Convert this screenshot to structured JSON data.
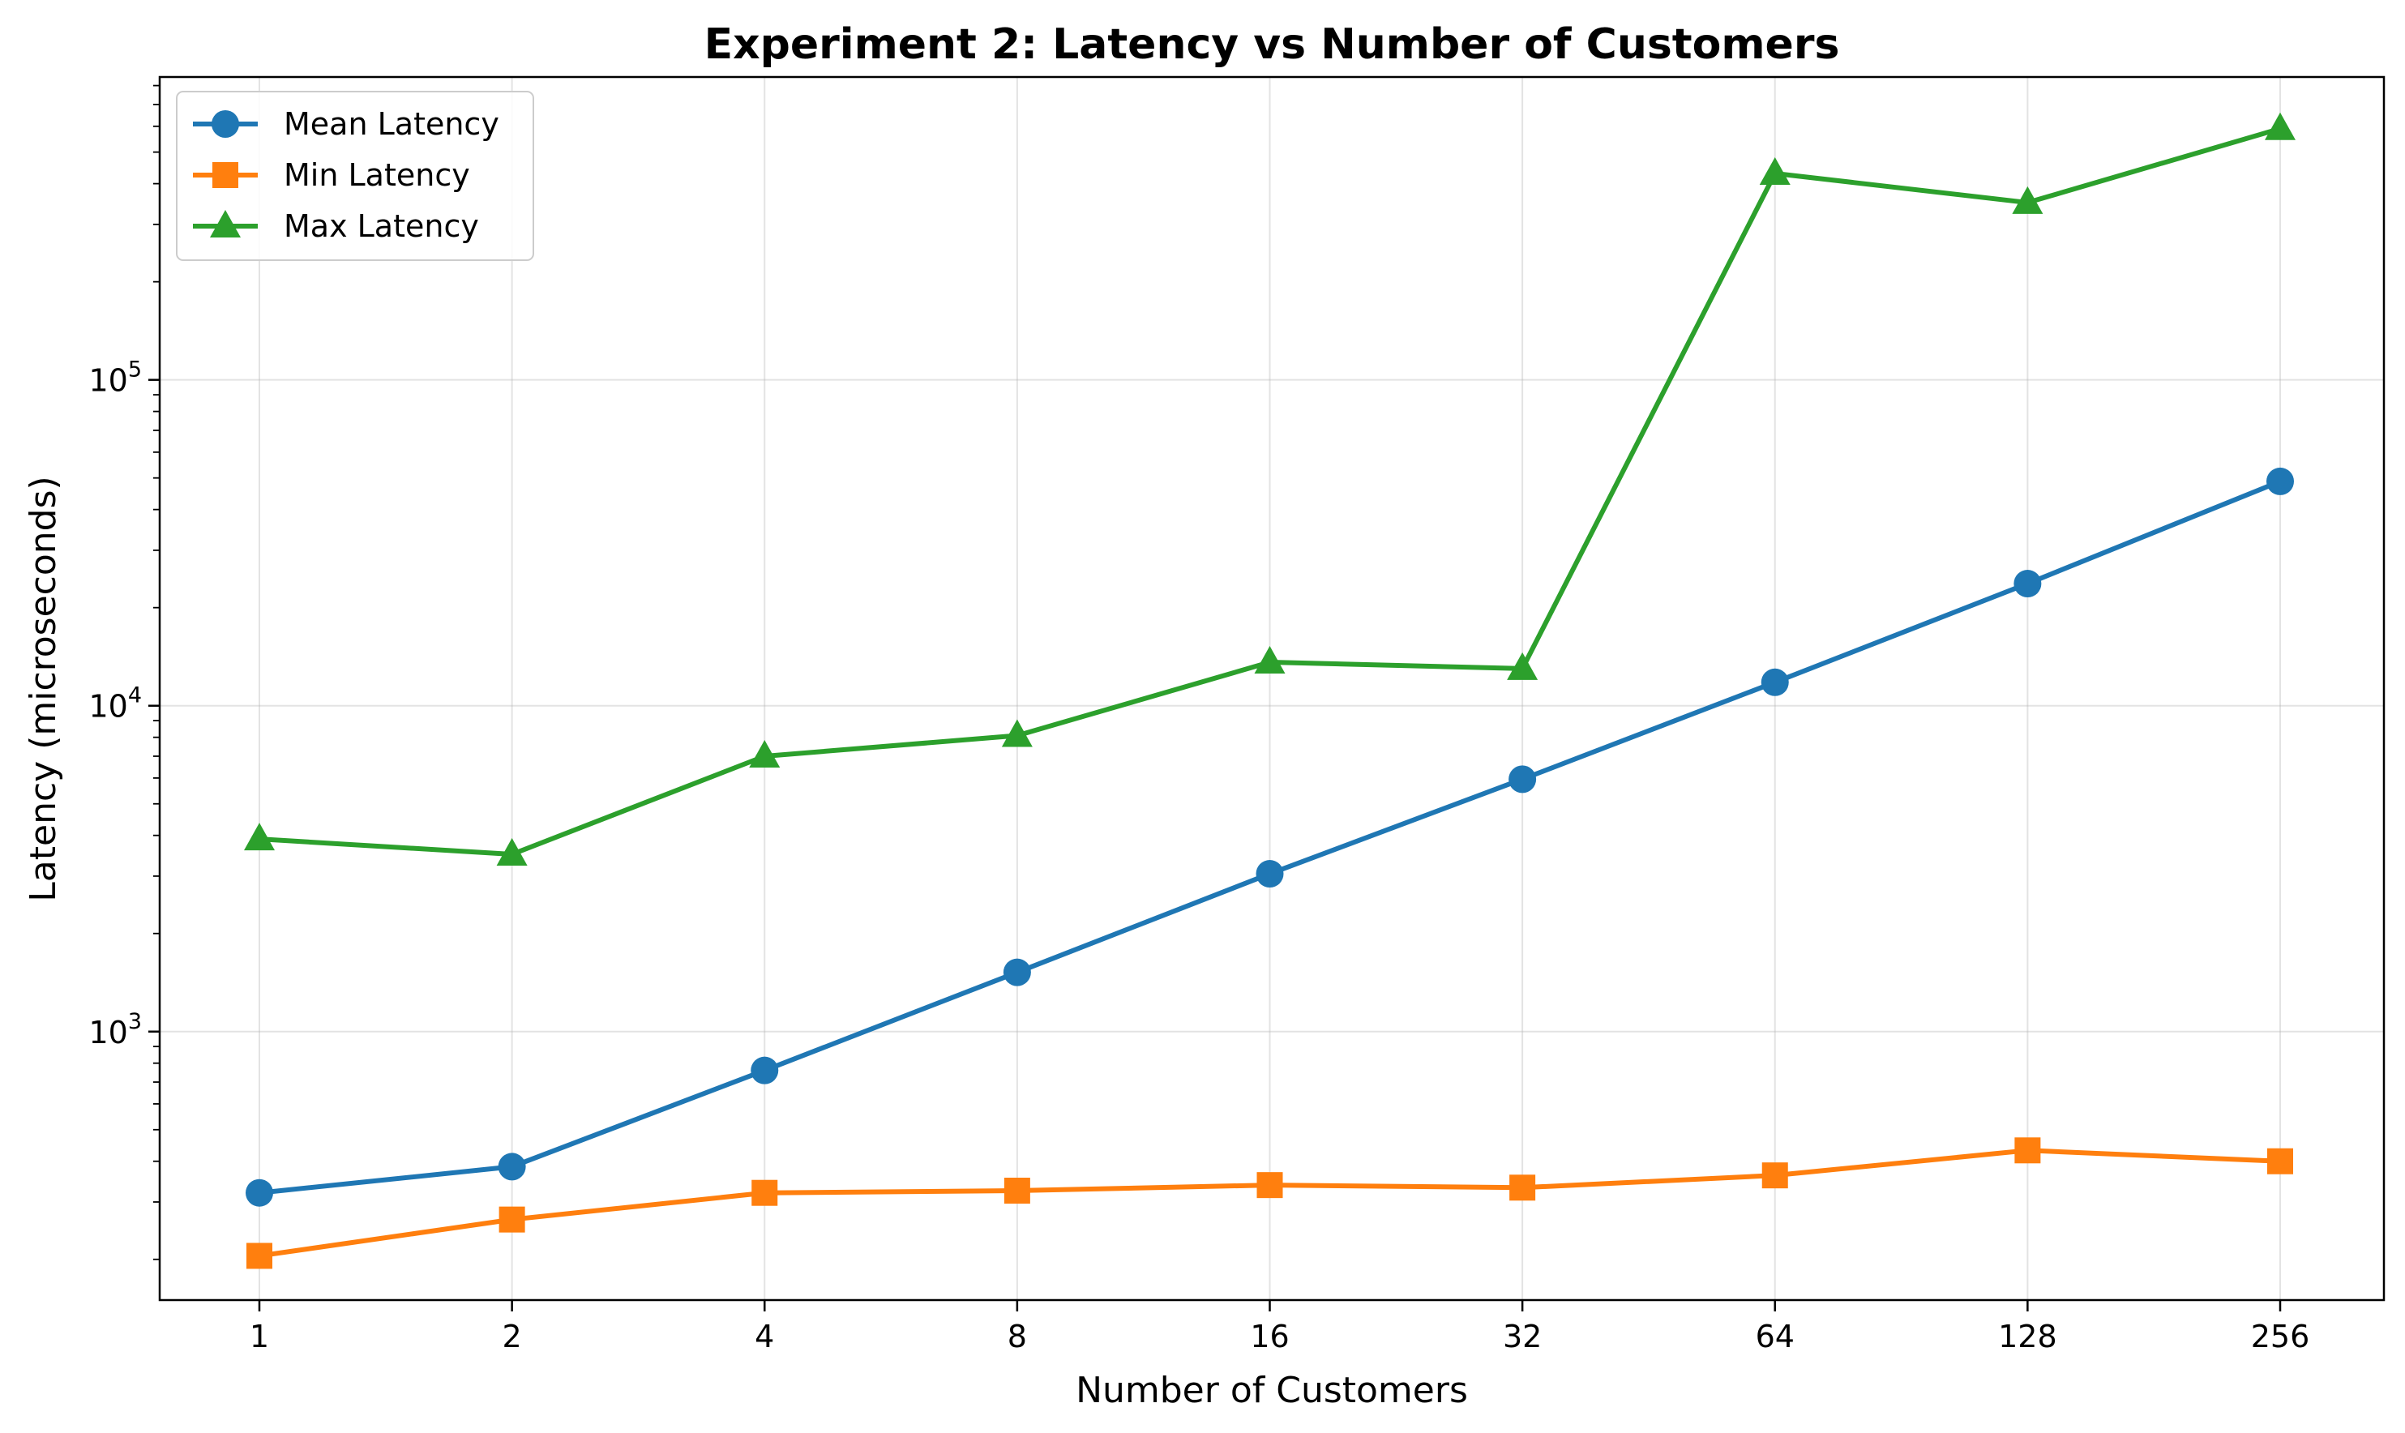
{
  "chart_data": {
    "type": "line",
    "title": "Experiment 2: Latency vs Number of Customers",
    "xlabel": "Number of Customers",
    "ylabel": "Latency (microseconds)",
    "categories": [
      "1",
      "2",
      "4",
      "8",
      "16",
      "32",
      "64",
      "128",
      "256"
    ],
    "y_scale": "log",
    "ylim": [
      150,
      850000
    ],
    "y_ticks": [
      {
        "value": 1000,
        "base": "10",
        "exp": "3"
      },
      {
        "value": 10000,
        "base": "10",
        "exp": "4"
      },
      {
        "value": 100000,
        "base": "10",
        "exp": "5"
      }
    ],
    "grid": true,
    "legend_position": "top-left",
    "series": [
      {
        "name": "Mean Latency",
        "color": "#1f77b4",
        "marker": "circle",
        "values": [
          320,
          385,
          760,
          1520,
          3050,
          5950,
          11800,
          23700,
          48800
        ]
      },
      {
        "name": "Min Latency",
        "color": "#ff7f0e",
        "marker": "square",
        "values": [
          205,
          265,
          320,
          325,
          338,
          332,
          362,
          432,
          400
        ]
      },
      {
        "name": "Max Latency",
        "color": "#2ca02c",
        "marker": "triangle",
        "values": [
          3900,
          3500,
          7000,
          8100,
          13600,
          13000,
          430000,
          350000,
          590000
        ]
      }
    ]
  }
}
